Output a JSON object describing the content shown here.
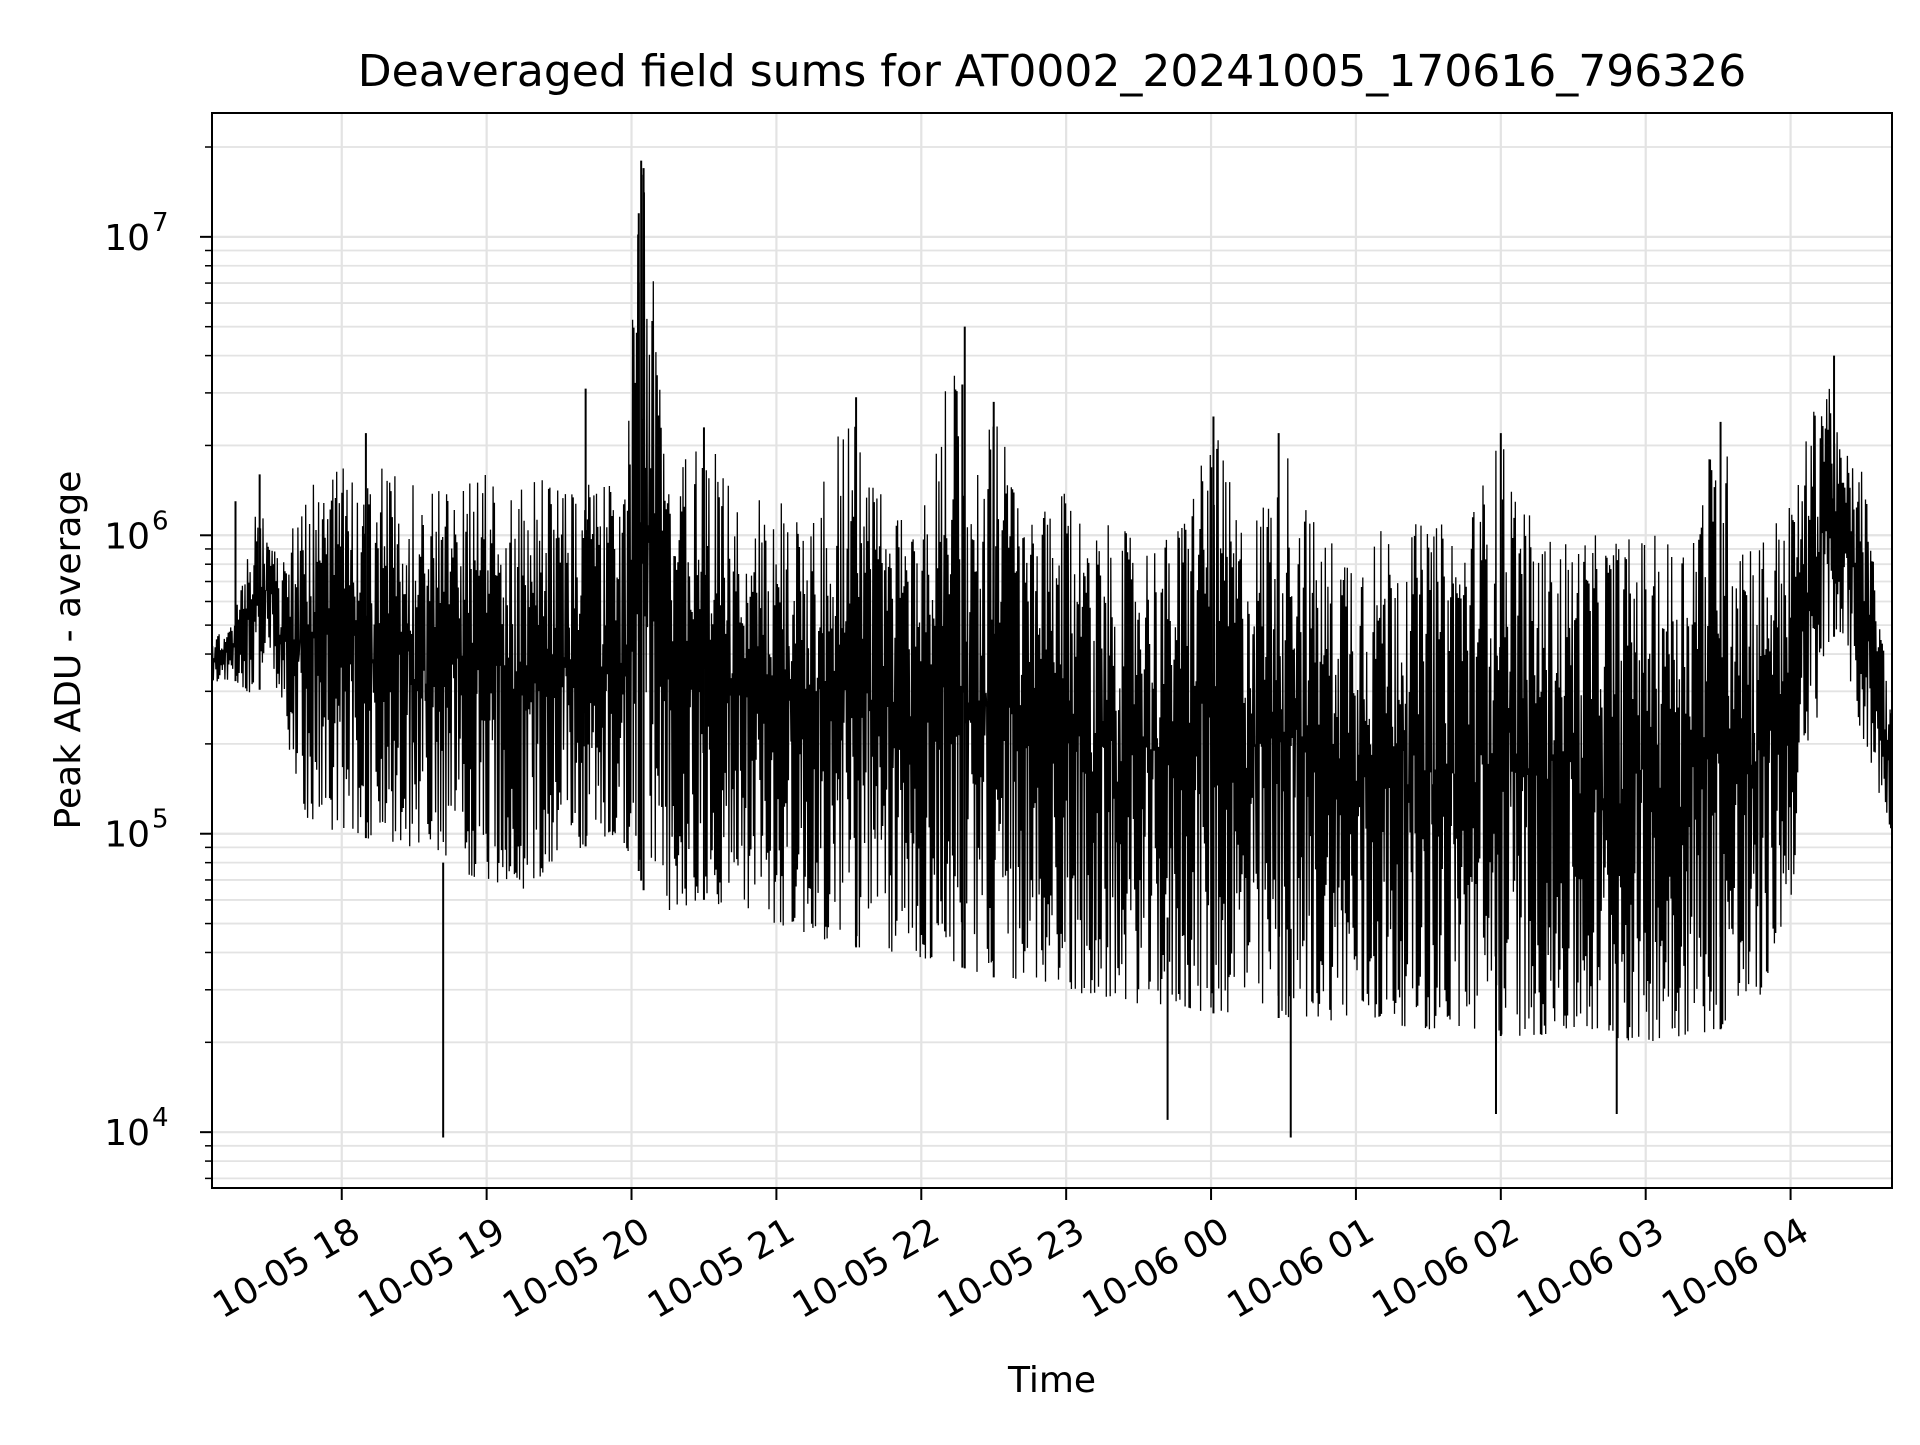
{
  "chart_data": {
    "type": "line",
    "title": "Deaveraged field sums for AT0002_20241005_170616_796326",
    "xlabel": "Time",
    "ylabel": "Peak ADU - average",
    "yscale": "log",
    "ylim": [
      6500,
      26000000
    ],
    "xlim": [
      "2024-10-05 17:06:16",
      "2024-10-06 04:42:00"
    ],
    "grid": true,
    "line_color": "#000000",
    "x_ticks": [
      {
        "value": "2024-10-05 18:00",
        "label": "10-05 18"
      },
      {
        "value": "2024-10-05 19:00",
        "label": "10-05 19"
      },
      {
        "value": "2024-10-05 20:00",
        "label": "10-05 20"
      },
      {
        "value": "2024-10-05 21:00",
        "label": "10-05 21"
      },
      {
        "value": "2024-10-05 22:00",
        "label": "10-05 22"
      },
      {
        "value": "2024-10-05 23:00",
        "label": "10-05 23"
      },
      {
        "value": "2024-10-06 00:00",
        "label": "10-06 00"
      },
      {
        "value": "2024-10-06 01:00",
        "label": "10-06 01"
      },
      {
        "value": "2024-10-06 02:00",
        "label": "10-06 02"
      },
      {
        "value": "2024-10-06 03:00",
        "label": "10-06 03"
      },
      {
        "value": "2024-10-06 04:00",
        "label": "10-06 04"
      }
    ],
    "y_ticks": [
      {
        "value": 10000,
        "base": "10",
        "exp": "4"
      },
      {
        "value": 100000,
        "base": "10",
        "exp": "5"
      },
      {
        "value": 1000000,
        "base": "10",
        "exp": "6"
      },
      {
        "value": 10000000,
        "base": "10",
        "exp": "7"
      }
    ],
    "series": [
      {
        "x": [
          "2024-10-05 17:06",
          "2024-10-05 17:15",
          "2024-10-05 17:25",
          "2024-10-05 17:30",
          "2024-10-05 17:35",
          "2024-10-05 17:45",
          "2024-10-05 18:00",
          "2024-10-05 18:15",
          "2024-10-05 18:30",
          "2024-10-05 18:45",
          "2024-10-05 19:00",
          "2024-10-05 19:15",
          "2024-10-05 19:30",
          "2024-10-05 19:45",
          "2024-10-05 19:58",
          "2024-10-05 20:03",
          "2024-10-05 20:06",
          "2024-10-05 20:15",
          "2024-10-05 20:30",
          "2024-10-05 20:45",
          "2024-10-05 21:00",
          "2024-10-05 21:15",
          "2024-10-05 21:30",
          "2024-10-05 21:45",
          "2024-10-05 22:00",
          "2024-10-05 22:15",
          "2024-10-05 22:20",
          "2024-10-05 22:30",
          "2024-10-05 22:45",
          "2024-10-05 23:00",
          "2024-10-05 23:15",
          "2024-10-05 23:30",
          "2024-10-05 23:45",
          "2024-10-06 00:00",
          "2024-10-06 00:15",
          "2024-10-06 00:30",
          "2024-10-06 00:45",
          "2024-10-06 01:00",
          "2024-10-06 01:15",
          "2024-10-06 01:30",
          "2024-10-06 01:45",
          "2024-10-06 02:00",
          "2024-10-06 02:15",
          "2024-10-06 02:30",
          "2024-10-06 02:45",
          "2024-10-06 03:00",
          "2024-10-06 03:15",
          "2024-10-06 03:30",
          "2024-10-06 03:45",
          "2024-10-06 04:00",
          "2024-10-06 04:15",
          "2024-10-06 04:20",
          "2024-10-06 04:30",
          "2024-10-06 04:42"
        ],
        "low": [
          320000,
          330000,
          280000,
          420000,
          250000,
          110000,
          100000,
          95000,
          90000,
          75000,
          70000,
          65000,
          80000,
          95000,
          85000,
          75000,
          60000,
          55000,
          60000,
          55000,
          50000,
          45000,
          42000,
          40000,
          38000,
          36000,
          35000,
          33000,
          32000,
          30000,
          28000,
          27000,
          26000,
          25000,
          25000,
          24000,
          24000,
          23000,
          23000,
          22000,
          22000,
          21000,
          21000,
          21000,
          20000,
          20000,
          21000,
          22000,
          24000,
          60000,
          400000,
          500000,
          200000,
          100000
        ],
        "high": [
          450000,
          500000,
          1300000,
          1000000,
          800000,
          1500000,
          1700000,
          1700000,
          1500000,
          1500000,
          1600000,
          1500000,
          1600000,
          1500000,
          1600000,
          18000000,
          17000000,
          1500000,
          2300000,
          1400000,
          1300000,
          1300000,
          2900000,
          1300000,
          1200000,
          5000000,
          1300000,
          2800000,
          1100000,
          1400000,
          1100000,
          1000000,
          1000000,
          2500000,
          1000000,
          2200000,
          1000000,
          1000000,
          1100000,
          1100000,
          1100000,
          2200000,
          1000000,
          1000000,
          1000000,
          1000000,
          1000000,
          2400000,
          1000000,
          1300000,
          4000000,
          2000000,
          1700000,
          250000
        ],
        "spikes": [
          {
            "x": "2024-10-05 18:10",
            "y": 2200000
          },
          {
            "x": "2024-10-05 19:41",
            "y": 3100000
          },
          {
            "x": "2024-10-05 20:03",
            "y": 12000000
          },
          {
            "x": "2024-10-05 20:04",
            "y": 18000000
          },
          {
            "x": "2024-10-05 20:05",
            "y": 17000000
          },
          {
            "x": "2024-10-05 20:30",
            "y": 2300000
          },
          {
            "x": "2024-10-05 21:33",
            "y": 2900000
          },
          {
            "x": "2024-10-05 22:17",
            "y": 3200000
          },
          {
            "x": "2024-10-05 22:18",
            "y": 5000000
          },
          {
            "x": "2024-10-05 22:30",
            "y": 2800000
          },
          {
            "x": "2024-10-06 00:01",
            "y": 2500000
          },
          {
            "x": "2024-10-06 00:28",
            "y": 2200000
          },
          {
            "x": "2024-10-06 02:00",
            "y": 2200000
          },
          {
            "x": "2024-10-06 03:31",
            "y": 2400000
          },
          {
            "x": "2024-10-06 04:18",
            "y": 4000000
          },
          {
            "x": "2024-10-05 17:16",
            "y": 1300000
          },
          {
            "x": "2024-10-05 17:26",
            "y": 1600000
          },
          {
            "x": "2024-10-05 18:42",
            "y": 9600
          },
          {
            "x": "2024-10-06 00:33",
            "y": 9600
          },
          {
            "x": "2024-10-06 01:58",
            "y": 11500
          },
          {
            "x": "2024-10-06 02:48",
            "y": 11500
          },
          {
            "x": "2024-10-05 23:42",
            "y": 11000
          }
        ]
      }
    ]
  }
}
